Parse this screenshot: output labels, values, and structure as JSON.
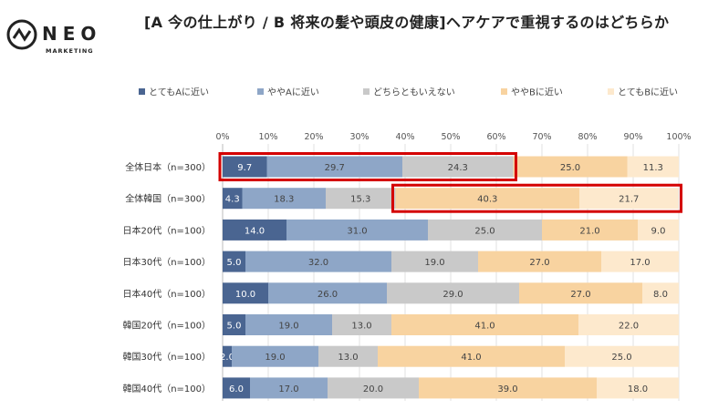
{
  "logo": {
    "brand": "NEO",
    "sub": "MARKETING"
  },
  "chart_data": {
    "type": "bar",
    "orientation": "horizontal",
    "stacked": "percent",
    "title": "[A 今の仕上がり / B 将来の髪や頭皮の健康]ヘアケアで重視するのはどちらか",
    "categories": [
      "全体日本（n=300）",
      "全体韓国（n=300）",
      "日本20代（n=100）",
      "日本30代（n=100）",
      "日本40代（n=100）",
      "韓国20代（n=100）",
      "韓国30代（n=100）",
      "韓国40代（n=100）"
    ],
    "series": [
      {
        "name": "とてもAに近い",
        "color": "#4a6591",
        "values": [
          9.7,
          4.3,
          14.0,
          5.0,
          10.0,
          5.0,
          2.0,
          6.0
        ]
      },
      {
        "name": "ややAに近い",
        "color": "#8ea6c7",
        "values": [
          29.7,
          18.3,
          31.0,
          32.0,
          26.0,
          19.0,
          19.0,
          17.0
        ]
      },
      {
        "name": "どちらともいえない",
        "color": "#c9c9c9",
        "values": [
          24.3,
          15.3,
          25.0,
          19.0,
          29.0,
          13.0,
          13.0,
          20.0
        ]
      },
      {
        "name": "ややBに近い",
        "color": "#f8d3a0",
        "values": [
          25.0,
          40.3,
          21.0,
          27.0,
          27.0,
          41.0,
          41.0,
          39.0
        ]
      },
      {
        "name": "とてもBに近い",
        "color": "#fde9cd",
        "values": [
          11.3,
          21.7,
          9.0,
          17.0,
          8.0,
          22.0,
          25.0,
          18.0
        ]
      }
    ],
    "xlim": [
      0,
      100
    ],
    "xticks": [
      "0%",
      "10%",
      "20%",
      "30%",
      "40%",
      "50%",
      "60%",
      "70%",
      "80%",
      "90%",
      "100%"
    ],
    "grid": true,
    "legend": "top",
    "highlights": [
      {
        "row": 0,
        "from_series": 0,
        "to_series": 2,
        "color": "#d40000"
      },
      {
        "row": 1,
        "from_series": 3,
        "to_series": 4,
        "color": "#d40000"
      }
    ]
  }
}
